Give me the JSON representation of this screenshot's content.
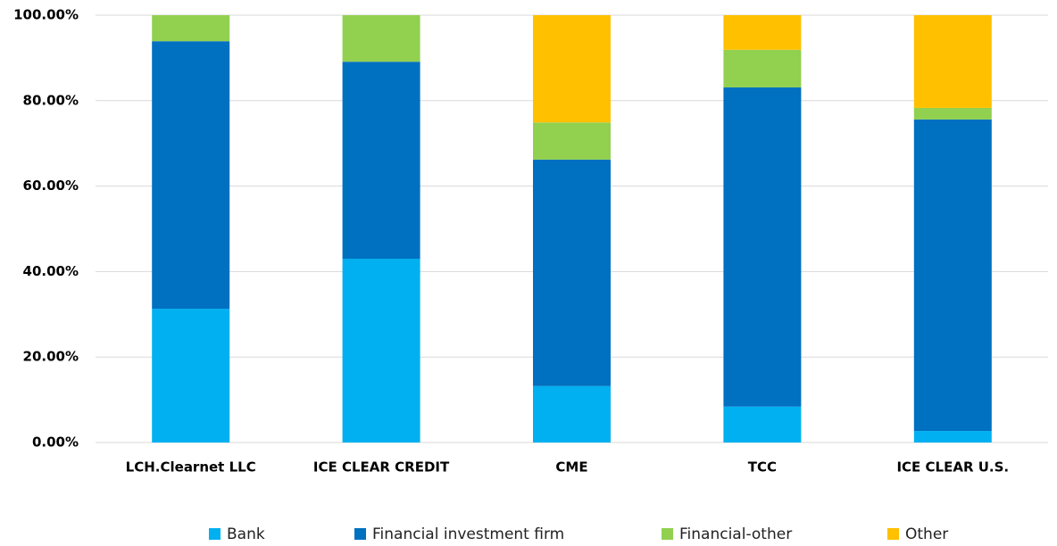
{
  "chart_data": {
    "type": "stacked_bar",
    "categories": [
      "LCH.Clearnet LLC",
      "ICE CLEAR CREDIT",
      "CME",
      "TCC",
      "ICE CLEAR U.S."
    ],
    "series": [
      {
        "name": "Bank",
        "color": "#00b0f0",
        "values": [
          31.3,
          43.0,
          13.2,
          8.4,
          2.7
        ]
      },
      {
        "name": "Financial investment firm",
        "color": "#0070c0",
        "values": [
          62.6,
          46.1,
          53.0,
          74.7,
          72.9
        ]
      },
      {
        "name": "Financial-other",
        "color": "#92d050",
        "values": [
          6.1,
          10.9,
          8.7,
          8.8,
          2.7
        ]
      },
      {
        "name": "Other",
        "color": "#ffc000",
        "values": [
          0,
          0,
          25.1,
          8.1,
          21.7
        ]
      }
    ],
    "ylim": [
      0,
      100
    ],
    "yticks": [
      {
        "value": 0,
        "label": "0.00%"
      },
      {
        "value": 20,
        "label": "20.00%"
      },
      {
        "value": 40,
        "label": "40.00%"
      },
      {
        "value": 60,
        "label": "60.00%"
      },
      {
        "value": 80,
        "label": "80.00%"
      },
      {
        "value": 100,
        "label": "100.00%"
      }
    ],
    "grid": true,
    "legend": "bottom"
  }
}
